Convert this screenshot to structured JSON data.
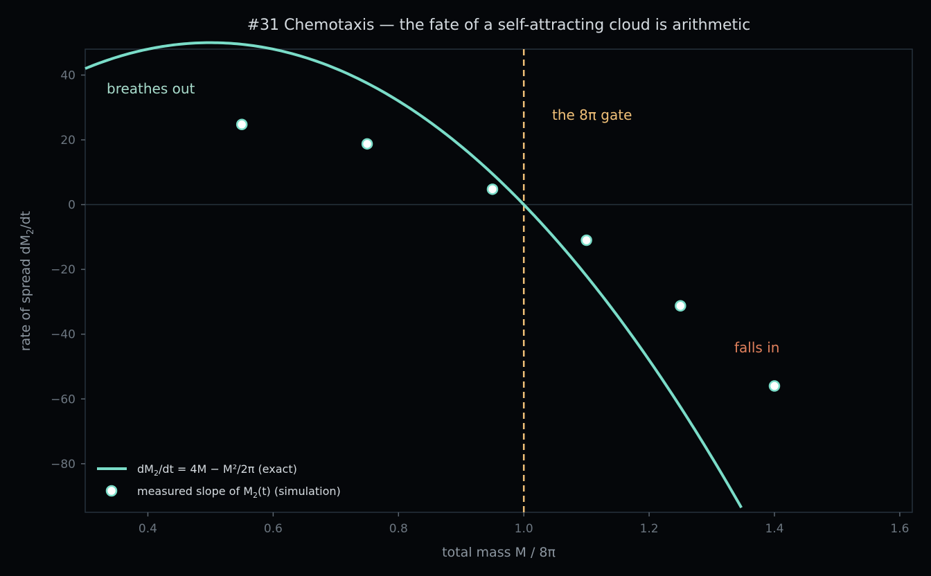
{
  "chart_data": {
    "type": "line",
    "title": "#31 Chemotaxis — the fate of a self-attracting cloud is arithmetic",
    "xlabel": "total mass  M / 8π",
    "ylabel_main": "rate of spread  dM",
    "ylabel_sub": "2",
    "ylabel_tail": "/dt",
    "xlim": [
      0.3,
      1.62
    ],
    "ylim": [
      -95,
      48
    ],
    "x_ticks": [
      0.4,
      0.6,
      0.8,
      1.0,
      1.2,
      1.4,
      1.6
    ],
    "x_tick_labels": [
      "0.4",
      "0.6",
      "0.8",
      "1.0",
      "1.2",
      "1.4",
      "1.6"
    ],
    "y_ticks": [
      40,
      20,
      0,
      -20,
      -40,
      -60,
      -80
    ],
    "y_tick_labels": [
      "40",
      "20",
      "0",
      "−20",
      "−40",
      "−60",
      "−80"
    ],
    "series": [
      {
        "kind": "curve",
        "legend_main": "dM",
        "legend_sub": "2",
        "legend_tail": "/dt = 4M − M²/2π  (exact)",
        "color": "#7adcc8",
        "formula": "200*m - 200*m*m",
        "x_range": [
          0.3,
          1.62
        ]
      },
      {
        "kind": "points",
        "legend_main": "measured slope of M",
        "legend_sub": "2",
        "legend_tail": "(t)  (simulation)",
        "color": "#7adcc8",
        "fill": "#ffffff",
        "x": [
          0.55,
          0.75,
          0.95,
          1.1,
          1.25,
          1.4
        ],
        "y": [
          24.75,
          18.75,
          4.75,
          -11.0,
          -31.25,
          -56.0
        ]
      }
    ],
    "gate": {
      "x": 1.0,
      "color": "#f0c078",
      "label": "the 8π gate"
    },
    "annotations": [
      {
        "text": "breathes out",
        "color": "#a8dccc"
      },
      {
        "text": "falls in",
        "color": "#e0805c"
      }
    ],
    "grid": false,
    "legend_position": "lower-left"
  }
}
